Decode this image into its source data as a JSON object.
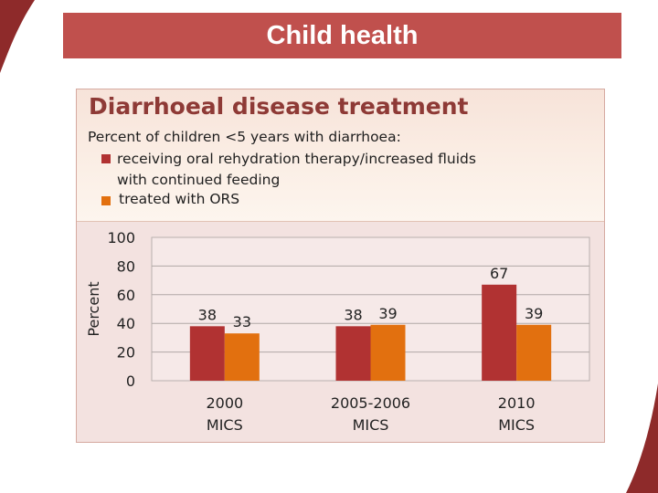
{
  "header": {
    "title": "Child health"
  },
  "colors": {
    "series1": "#b13232",
    "series2": "#e2700f",
    "title_bar": "#c0504d",
    "title_text": "#8e3a36"
  },
  "chart_data": {
    "type": "bar",
    "title": "Diarrhoeal disease treatment",
    "subtitle": "Percent of children <5 years with diarrhoea:",
    "ylabel": "Percent",
    "xlabel": "",
    "ylim": [
      0,
      100
    ],
    "yticks": [
      "100",
      "80",
      "60",
      "40",
      "20",
      "0"
    ],
    "categories": [
      {
        "line1": "2000",
        "line2": "MICS"
      },
      {
        "line1": "2005-2006",
        "line2": "MICS"
      },
      {
        "line1": "2010",
        "line2": "MICS"
      }
    ],
    "series": [
      {
        "name_line1": "receiving oral rehydration therapy/increased fluids",
        "name_line2": "with continued feeding",
        "values": [
          38,
          38,
          67
        ]
      },
      {
        "name_line1": "treated with ORS",
        "values": [
          33,
          39,
          39
        ]
      }
    ],
    "data_labels": [
      [
        "38",
        "38",
        "67"
      ],
      [
        "33",
        "39",
        "39"
      ]
    ],
    "grid": true,
    "legend": "top-left"
  }
}
